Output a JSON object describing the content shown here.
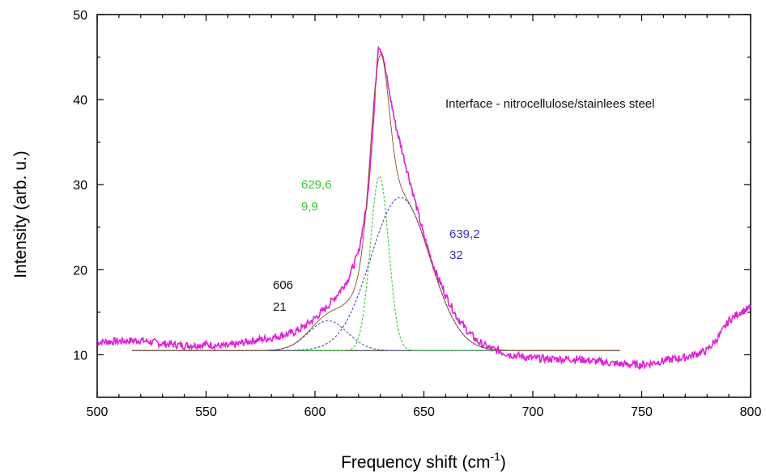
{
  "chart_data": {
    "type": "line",
    "xlabel": "Frequency shift (cm",
    "xlabel_sup": "-1",
    "xlabel_end": ")",
    "ylabel": "Intensity (arb. u.)",
    "xlim": [
      500,
      800
    ],
    "ylim": [
      5,
      50
    ],
    "x_ticks": [
      500,
      550,
      600,
      650,
      700,
      750,
      800
    ],
    "y_ticks": [
      10,
      20,
      30,
      40,
      50
    ],
    "grid": false,
    "legend": "none",
    "colors": {
      "measured": "#e01fd6",
      "fit_total": "#8a4b2a",
      "peak_606": "#5a5aa0",
      "peak_629": "#33cc33",
      "peak_639": "#4a4aa8",
      "baseline": "#222222"
    },
    "baseline": 10.5,
    "measured_points": [
      [
        500,
        11.5
      ],
      [
        510,
        11.6
      ],
      [
        520,
        11.7
      ],
      [
        530,
        11.3
      ],
      [
        540,
        11.1
      ],
      [
        550,
        11.2
      ],
      [
        560,
        11.0
      ],
      [
        570,
        11.6
      ],
      [
        580,
        12.0
      ],
      [
        590,
        12.6
      ],
      [
        595,
        13.3
      ],
      [
        600,
        14.3
      ],
      [
        605,
        15.5
      ],
      [
        610,
        17.0
      ],
      [
        615,
        18.8
      ],
      [
        620,
        22.0
      ],
      [
        624,
        28.0
      ],
      [
        627,
        38.0
      ],
      [
        629,
        46.5
      ],
      [
        631,
        45.5
      ],
      [
        634,
        41.0
      ],
      [
        637,
        37.0
      ],
      [
        640,
        34.0
      ],
      [
        645,
        29.0
      ],
      [
        650,
        24.0
      ],
      [
        655,
        20.0
      ],
      [
        660,
        17.0
      ],
      [
        665,
        14.5
      ],
      [
        670,
        12.8
      ],
      [
        675,
        11.5
      ],
      [
        680,
        10.8
      ],
      [
        690,
        10.0
      ],
      [
        700,
        9.6
      ],
      [
        710,
        9.5
      ],
      [
        720,
        9.5
      ],
      [
        730,
        9.2
      ],
      [
        740,
        8.9
      ],
      [
        750,
        8.8
      ],
      [
        760,
        9.3
      ],
      [
        770,
        9.7
      ],
      [
        780,
        10.5
      ],
      [
        785,
        12.0
      ],
      [
        790,
        14.0
      ],
      [
        795,
        15.0
      ],
      [
        800,
        15.5
      ]
    ],
    "fit_range": [
      516,
      740
    ],
    "peaks": [
      {
        "center": 606,
        "width": 21,
        "height": 3.5,
        "center_label": "606",
        "width_label": "21",
        "color": "#111111"
      },
      {
        "center": 629.6,
        "width": 9.9,
        "height": 20.5,
        "center_label": "629,6",
        "width_label": "9,9",
        "color": "#33cc33"
      },
      {
        "center": 639.2,
        "width": 32,
        "height": 18.0,
        "center_label": "639,2",
        "width_label": "32",
        "color": "#3333bb"
      }
    ],
    "annotation": "Interface - nitrocellulose/stainlees steel"
  }
}
